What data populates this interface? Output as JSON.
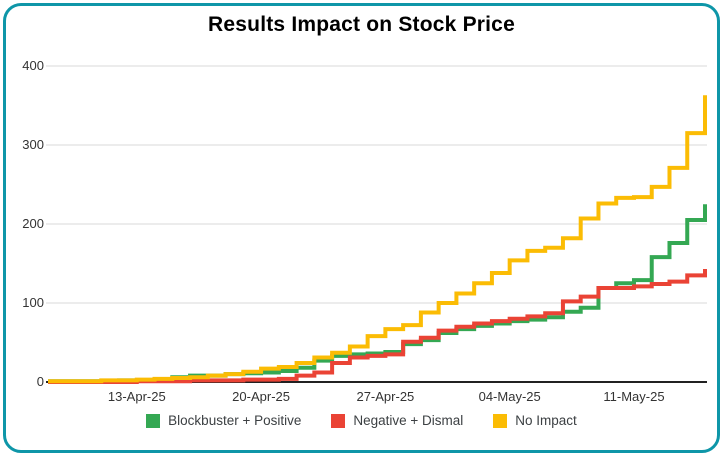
{
  "frame": {
    "border_color": "#0e96a8",
    "background": "#ffffff"
  },
  "chart_data": {
    "type": "line",
    "subtype": "step-after",
    "title": "Results Impact on Stock Price",
    "xlabel": "",
    "ylabel": "",
    "ylim": [
      0,
      400
    ],
    "yticks": [
      0,
      100,
      200,
      300,
      400
    ],
    "grid": "horizontal-only",
    "grid_color": "#d9d9d9",
    "axis_color": "#212121",
    "tick_text_color": "#333333",
    "legend_position": "bottom",
    "x": [
      "08-Apr-25",
      "09-Apr-25",
      "10-Apr-25",
      "11-Apr-25",
      "12-Apr-25",
      "13-Apr-25",
      "14-Apr-25",
      "15-Apr-25",
      "16-Apr-25",
      "17-Apr-25",
      "18-Apr-25",
      "19-Apr-25",
      "20-Apr-25",
      "21-Apr-25",
      "22-Apr-25",
      "23-Apr-25",
      "24-Apr-25",
      "25-Apr-25",
      "26-Apr-25",
      "27-Apr-25",
      "28-Apr-25",
      "29-Apr-25",
      "30-Apr-25",
      "01-May-25",
      "02-May-25",
      "03-May-25",
      "04-May-25",
      "05-May-25",
      "06-May-25",
      "07-May-25",
      "08-May-25",
      "09-May-25",
      "10-May-25",
      "11-May-25",
      "12-May-25",
      "13-May-25",
      "14-May-25",
      "15-May-25"
    ],
    "xtick_labels": [
      "13-Apr-25",
      "20-Apr-25",
      "27-Apr-25",
      "04-May-25",
      "11-May-25"
    ],
    "xtick_indices": [
      5,
      12,
      19,
      26,
      33
    ],
    "series": [
      {
        "name": "Blockbuster + Positive",
        "color": "#34a853",
        "values": [
          1,
          1,
          1,
          1,
          2,
          2,
          3,
          6,
          8,
          8,
          10,
          11,
          12,
          14,
          18,
          27,
          33,
          35,
          36,
          38,
          48,
          53,
          62,
          67,
          71,
          74,
          77,
          79,
          82,
          89,
          94,
          119,
          125,
          129,
          158,
          176,
          205,
          225
        ]
      },
      {
        "name": "Negative + Dismal",
        "color": "#ea4335",
        "values": [
          0,
          0,
          0,
          0,
          0,
          1,
          1,
          1,
          2,
          2,
          2,
          3,
          3,
          4,
          8,
          12,
          24,
          31,
          33,
          35,
          51,
          56,
          65,
          70,
          74,
          77,
          80,
          83,
          87,
          102,
          108,
          119,
          119,
          121,
          124,
          127,
          135,
          143
        ]
      },
      {
        "name": "No Impact",
        "color": "#fbbc04",
        "values": [
          1,
          1,
          1,
          2,
          2,
          3,
          4,
          5,
          6,
          8,
          10,
          13,
          17,
          19,
          24,
          31,
          37,
          45,
          58,
          67,
          72,
          88,
          100,
          112,
          125,
          138,
          154,
          166,
          170,
          182,
          207,
          226,
          233,
          234,
          247,
          271,
          315,
          363
        ]
      }
    ]
  }
}
